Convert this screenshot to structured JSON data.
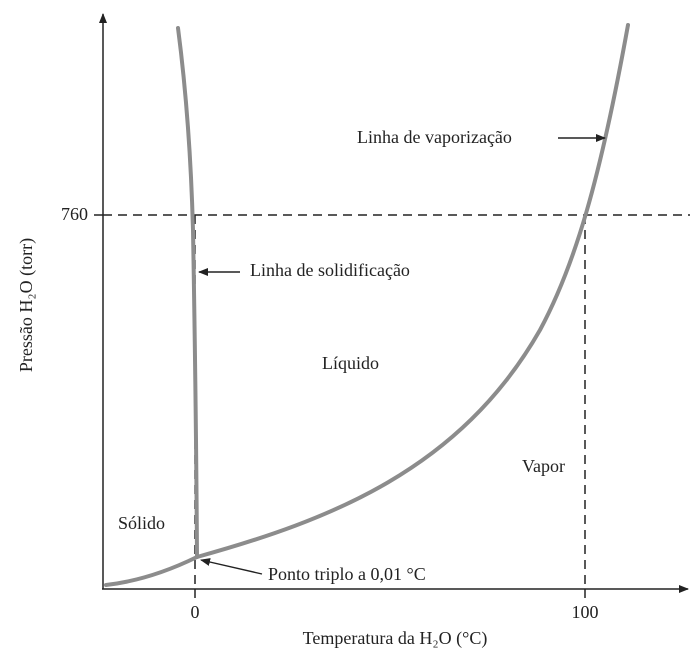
{
  "axes": {
    "x_label": "Temperatura da H₂O (°C)",
    "y_label": "Pressão H₂O (torr)",
    "x_ticks": [
      "0",
      "100"
    ],
    "y_ticks": [
      "760"
    ]
  },
  "regions": {
    "solid": "Sólido",
    "liquid": "Líquido",
    "vapor": "Vapor"
  },
  "annotations": {
    "vaporization": "Linha de vaporização",
    "solidification": "Linha de solidificação",
    "triple_point": "Ponto triplo a 0,01 °C"
  }
}
